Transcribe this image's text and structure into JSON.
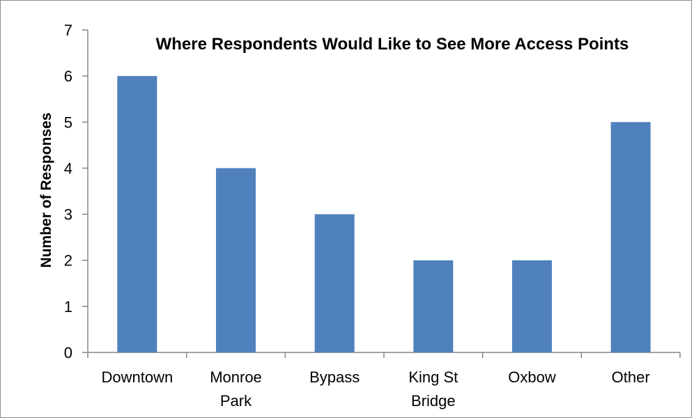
{
  "chart_data": {
    "type": "bar",
    "title": "Where Respondents Would Like to See More Access Points",
    "xlabel": "",
    "ylabel": "Number of Responses",
    "categories": [
      [
        "Downtown"
      ],
      [
        "Monroe",
        "Park"
      ],
      [
        "Bypass"
      ],
      [
        "King St",
        "Bridge"
      ],
      [
        "Oxbow"
      ],
      [
        "Other"
      ]
    ],
    "values": [
      6,
      4,
      3,
      2,
      2,
      5
    ],
    "ylim": [
      0,
      7
    ],
    "yticks": [
      "0",
      "1",
      "2",
      "3",
      "4",
      "5",
      "6",
      "7"
    ],
    "grid": false,
    "legend": "none",
    "bar_color": "#4f81bd",
    "axis_color": "#868686"
  }
}
